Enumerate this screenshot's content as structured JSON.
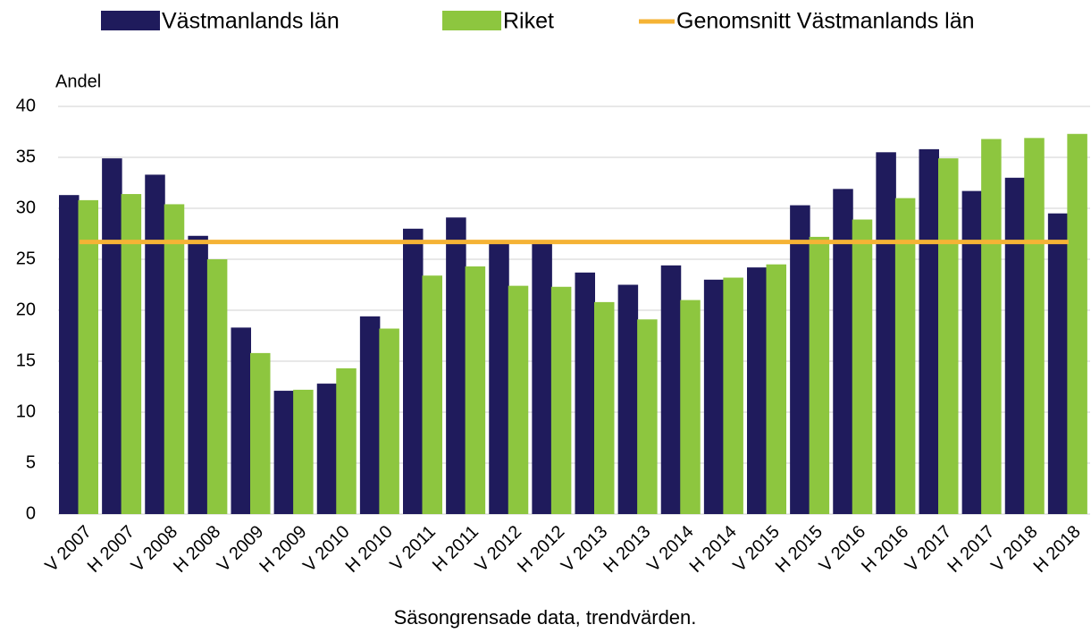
{
  "chart_data": {
    "type": "bar",
    "y_label": "Andel",
    "x_label": "Säsongrensade data, trendvärden.",
    "categories": [
      "V 2007",
      "H 2007",
      "V 2008",
      "H 2008",
      "V 2009",
      "H 2009",
      "V 2010",
      "H 2010",
      "V 2011",
      "H 2011",
      "V 2012",
      "H 2012",
      "V 2013",
      "H 2013",
      "V 2014",
      "H 2014",
      "V 2015",
      "H 2015",
      "V 2016",
      "H 2016",
      "V 2017",
      "H 2017",
      "V 2018",
      "H 2018"
    ],
    "series": [
      {
        "name": "Västmanlands län",
        "color": "#1f1b5c",
        "type": "bar",
        "values": [
          31.3,
          34.9,
          33.3,
          27.3,
          18.3,
          12.1,
          12.8,
          19.4,
          28.0,
          29.1,
          26.8,
          26.6,
          23.7,
          22.5,
          24.4,
          23.0,
          24.2,
          30.3,
          31.9,
          35.5,
          35.8,
          31.7,
          33.0,
          29.5
        ]
      },
      {
        "name": "Riket",
        "color": "#8dc63f",
        "type": "bar",
        "values": [
          30.8,
          31.4,
          30.4,
          25.0,
          15.8,
          12.2,
          14.3,
          18.2,
          23.4,
          24.3,
          22.4,
          22.3,
          20.8,
          19.1,
          21.0,
          23.2,
          24.5,
          27.2,
          28.9,
          31.0,
          34.9,
          36.8,
          36.9,
          37.3
        ]
      },
      {
        "name": "Genomsnitt Västmanlands län",
        "color": "#f5b335",
        "type": "line",
        "values": [
          26.7,
          26.7,
          26.7,
          26.7,
          26.7,
          26.7,
          26.7,
          26.7,
          26.7,
          26.7,
          26.7,
          26.7,
          26.7,
          26.7,
          26.7,
          26.7,
          26.7,
          26.7,
          26.7,
          26.7,
          26.7,
          26.7,
          26.7,
          26.7
        ]
      }
    ],
    "ylim": [
      0,
      40
    ],
    "yticks": [
      0,
      5,
      10,
      15,
      20,
      25,
      30,
      35,
      40
    ],
    "grid": true,
    "legend": "top"
  }
}
